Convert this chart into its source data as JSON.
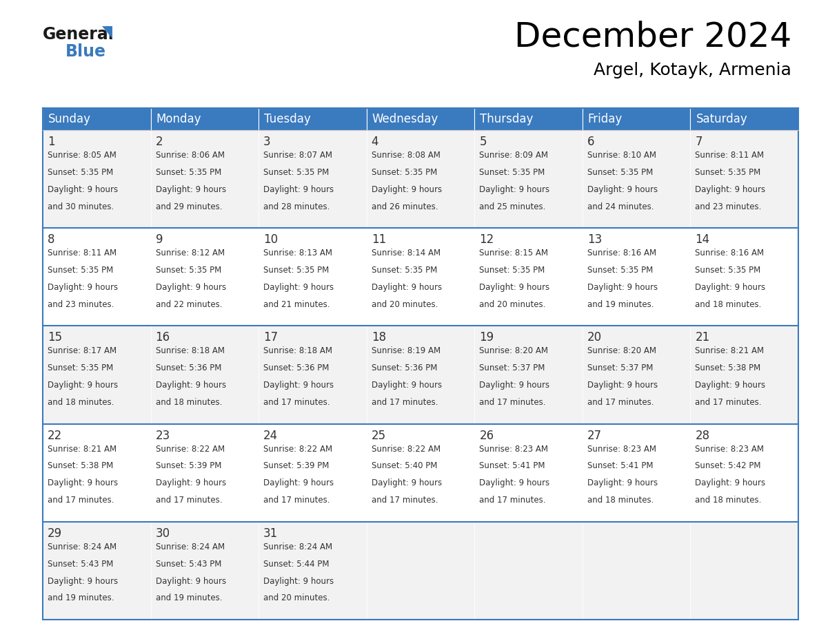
{
  "title": "December 2024",
  "subtitle": "Argel, Kotayk, Armenia",
  "days_of_week": [
    "Sunday",
    "Monday",
    "Tuesday",
    "Wednesday",
    "Thursday",
    "Friday",
    "Saturday"
  ],
  "header_bg": "#3a7abf",
  "header_text": "#ffffff",
  "cell_bg_light": "#f2f2f2",
  "cell_bg_white": "#ffffff",
  "border_color": "#3a7abf",
  "sep_color": "#aaaaaa",
  "text_color": "#333333",
  "calendar_data": [
    [
      {
        "day": 1,
        "sunrise": "8:05 AM",
        "sunset": "5:35 PM",
        "daylight": "9 hours and 30 minutes."
      },
      {
        "day": 2,
        "sunrise": "8:06 AM",
        "sunset": "5:35 PM",
        "daylight": "9 hours and 29 minutes."
      },
      {
        "day": 3,
        "sunrise": "8:07 AM",
        "sunset": "5:35 PM",
        "daylight": "9 hours and 28 minutes."
      },
      {
        "day": 4,
        "sunrise": "8:08 AM",
        "sunset": "5:35 PM",
        "daylight": "9 hours and 26 minutes."
      },
      {
        "day": 5,
        "sunrise": "8:09 AM",
        "sunset": "5:35 PM",
        "daylight": "9 hours and 25 minutes."
      },
      {
        "day": 6,
        "sunrise": "8:10 AM",
        "sunset": "5:35 PM",
        "daylight": "9 hours and 24 minutes."
      },
      {
        "day": 7,
        "sunrise": "8:11 AM",
        "sunset": "5:35 PM",
        "daylight": "9 hours and 23 minutes."
      }
    ],
    [
      {
        "day": 8,
        "sunrise": "8:11 AM",
        "sunset": "5:35 PM",
        "daylight": "9 hours and 23 minutes."
      },
      {
        "day": 9,
        "sunrise": "8:12 AM",
        "sunset": "5:35 PM",
        "daylight": "9 hours and 22 minutes."
      },
      {
        "day": 10,
        "sunrise": "8:13 AM",
        "sunset": "5:35 PM",
        "daylight": "9 hours and 21 minutes."
      },
      {
        "day": 11,
        "sunrise": "8:14 AM",
        "sunset": "5:35 PM",
        "daylight": "9 hours and 20 minutes."
      },
      {
        "day": 12,
        "sunrise": "8:15 AM",
        "sunset": "5:35 PM",
        "daylight": "9 hours and 20 minutes."
      },
      {
        "day": 13,
        "sunrise": "8:16 AM",
        "sunset": "5:35 PM",
        "daylight": "9 hours and 19 minutes."
      },
      {
        "day": 14,
        "sunrise": "8:16 AM",
        "sunset": "5:35 PM",
        "daylight": "9 hours and 18 minutes."
      }
    ],
    [
      {
        "day": 15,
        "sunrise": "8:17 AM",
        "sunset": "5:35 PM",
        "daylight": "9 hours and 18 minutes."
      },
      {
        "day": 16,
        "sunrise": "8:18 AM",
        "sunset": "5:36 PM",
        "daylight": "9 hours and 18 minutes."
      },
      {
        "day": 17,
        "sunrise": "8:18 AM",
        "sunset": "5:36 PM",
        "daylight": "9 hours and 17 minutes."
      },
      {
        "day": 18,
        "sunrise": "8:19 AM",
        "sunset": "5:36 PM",
        "daylight": "9 hours and 17 minutes."
      },
      {
        "day": 19,
        "sunrise": "8:20 AM",
        "sunset": "5:37 PM",
        "daylight": "9 hours and 17 minutes."
      },
      {
        "day": 20,
        "sunrise": "8:20 AM",
        "sunset": "5:37 PM",
        "daylight": "9 hours and 17 minutes."
      },
      {
        "day": 21,
        "sunrise": "8:21 AM",
        "sunset": "5:38 PM",
        "daylight": "9 hours and 17 minutes."
      }
    ],
    [
      {
        "day": 22,
        "sunrise": "8:21 AM",
        "sunset": "5:38 PM",
        "daylight": "9 hours and 17 minutes."
      },
      {
        "day": 23,
        "sunrise": "8:22 AM",
        "sunset": "5:39 PM",
        "daylight": "9 hours and 17 minutes."
      },
      {
        "day": 24,
        "sunrise": "8:22 AM",
        "sunset": "5:39 PM",
        "daylight": "9 hours and 17 minutes."
      },
      {
        "day": 25,
        "sunrise": "8:22 AM",
        "sunset": "5:40 PM",
        "daylight": "9 hours and 17 minutes."
      },
      {
        "day": 26,
        "sunrise": "8:23 AM",
        "sunset": "5:41 PM",
        "daylight": "9 hours and 17 minutes."
      },
      {
        "day": 27,
        "sunrise": "8:23 AM",
        "sunset": "5:41 PM",
        "daylight": "9 hours and 18 minutes."
      },
      {
        "day": 28,
        "sunrise": "8:23 AM",
        "sunset": "5:42 PM",
        "daylight": "9 hours and 18 minutes."
      }
    ],
    [
      {
        "day": 29,
        "sunrise": "8:24 AM",
        "sunset": "5:43 PM",
        "daylight": "9 hours and 19 minutes."
      },
      {
        "day": 30,
        "sunrise": "8:24 AM",
        "sunset": "5:43 PM",
        "daylight": "9 hours and 19 minutes."
      },
      {
        "day": 31,
        "sunrise": "8:24 AM",
        "sunset": "5:44 PM",
        "daylight": "9 hours and 20 minutes."
      },
      null,
      null,
      null,
      null
    ]
  ],
  "logo_general_color": "#1a1a1a",
  "logo_blue_color": "#3a7abf",
  "title_fontsize": 36,
  "subtitle_fontsize": 18,
  "header_fontsize": 12,
  "day_num_fontsize": 12,
  "cell_text_fontsize": 8.5
}
